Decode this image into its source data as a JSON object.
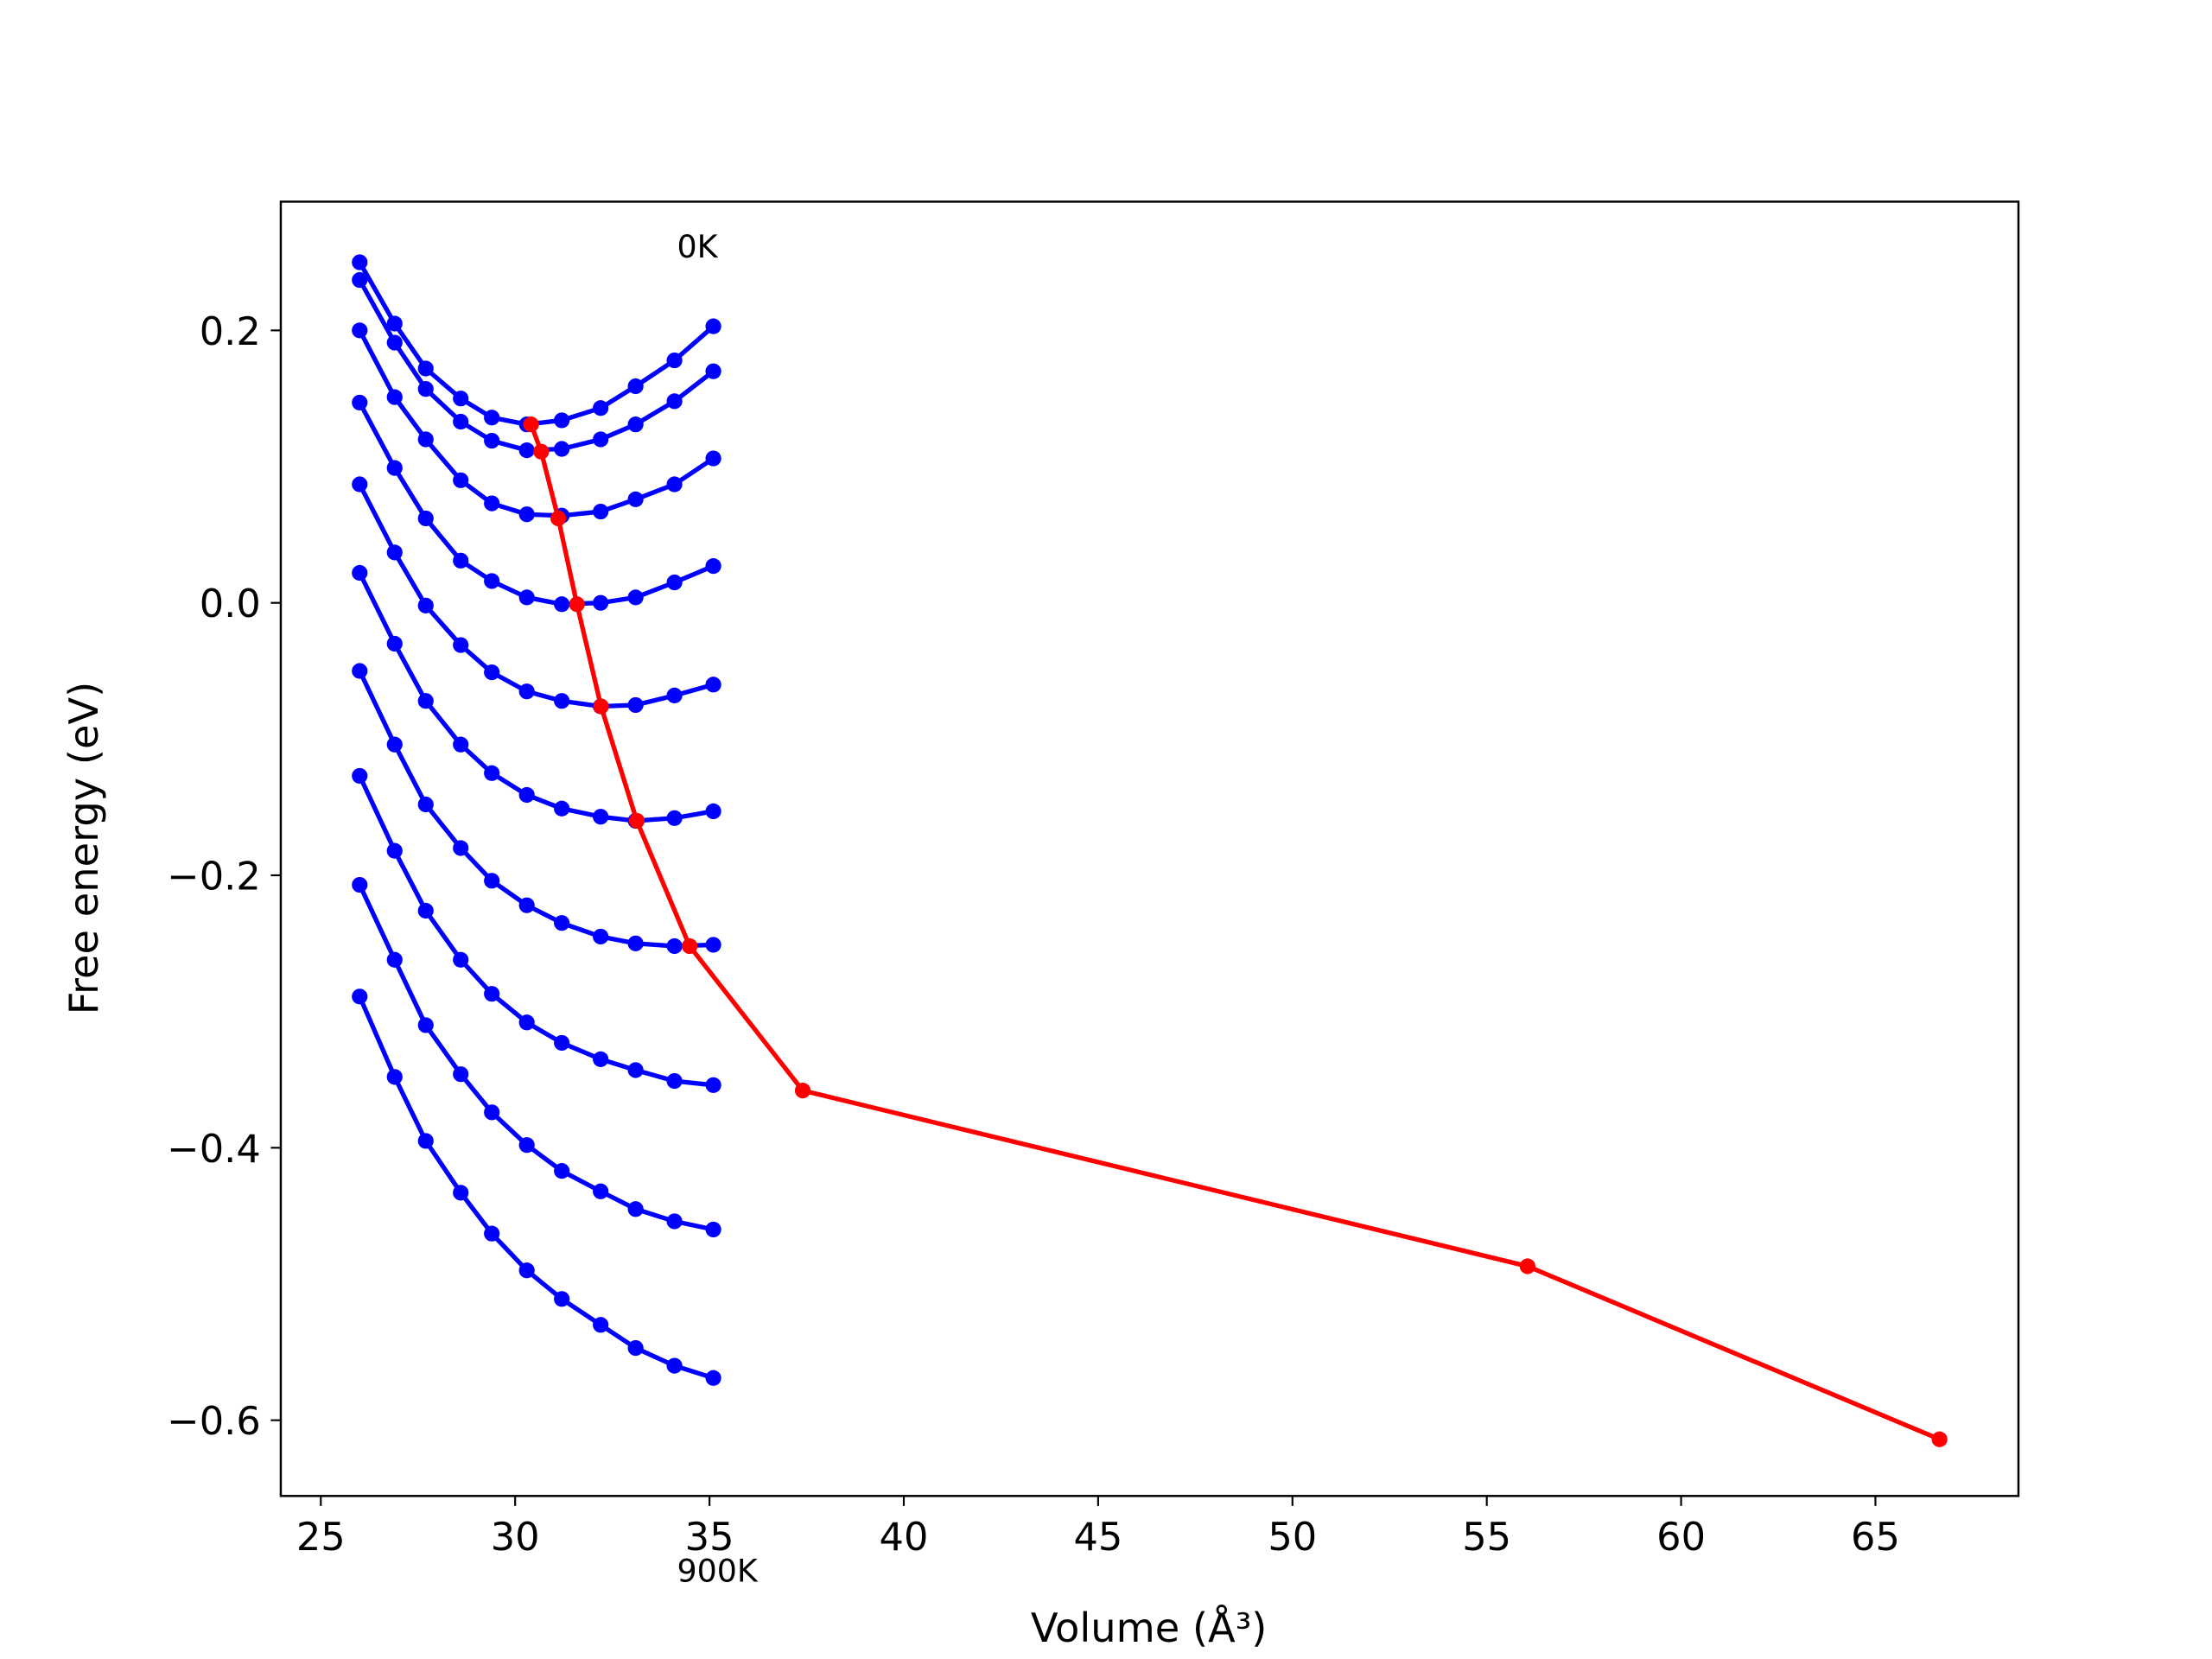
{
  "chart_data": {
    "type": "line",
    "xlabel": "Volume (Å³)",
    "ylabel": "Free energy (eV)",
    "annotations": [
      "0K",
      "900K"
    ],
    "xlim": [
      23.97,
      68.68
    ],
    "ylim": [
      -0.6556,
      0.2945
    ],
    "xticks": [
      25,
      30,
      35,
      40,
      45,
      50,
      55,
      60,
      65
    ],
    "yticks": [
      {
        "value": -0.6,
        "label": "−0.6"
      },
      {
        "value": -0.4,
        "label": "−0.4"
      },
      {
        "value": -0.2,
        "label": "−0.2"
      },
      {
        "value": 0.0,
        "label": "0.0"
      },
      0.2
    ],
    "series": [
      {
        "color": "#0000ff",
        "x": [
          26.0,
          26.9,
          27.7,
          28.6,
          29.4,
          30.3,
          31.2,
          32.2,
          33.1,
          34.1,
          35.1
        ],
        "values": [
          0.25,
          0.205,
          0.172,
          0.15,
          0.136,
          0.131,
          0.134,
          0.143,
          0.159,
          0.178,
          0.203
        ]
      },
      {
        "color": "#0000ff",
        "x": [
          26.0,
          26.9,
          27.7,
          28.6,
          29.4,
          30.3,
          31.2,
          32.2,
          33.1,
          34.1,
          35.1
        ],
        "values": [
          0.237,
          0.191,
          0.157,
          0.133,
          0.119,
          0.112,
          0.113,
          0.12,
          0.131,
          0.148,
          0.17
        ]
      },
      {
        "color": "#0000ff",
        "x": [
          26.0,
          26.9,
          27.7,
          28.6,
          29.4,
          30.3,
          31.2,
          32.2,
          33.1,
          34.1,
          35.1
        ],
        "values": [
          0.2,
          0.151,
          0.12,
          0.09,
          0.073,
          0.065,
          0.064,
          0.067,
          0.076,
          0.087,
          0.106
        ]
      },
      {
        "color": "#0000ff",
        "x": [
          26.0,
          26.9,
          27.7,
          28.6,
          29.4,
          30.3,
          31.2,
          32.2,
          33.1,
          34.1,
          35.1
        ],
        "values": [
          0.147,
          0.099,
          0.062,
          0.031,
          0.016,
          0.004,
          -0.001,
          0.0,
          0.004,
          0.015,
          0.027
        ]
      },
      {
        "color": "#0000ff",
        "x": [
          26.0,
          26.9,
          27.7,
          28.6,
          29.4,
          30.3,
          31.2,
          32.2,
          33.1,
          34.1,
          35.1
        ],
        "values": [
          0.087,
          0.037,
          -0.002,
          -0.031,
          -0.051,
          -0.065,
          -0.072,
          -0.076,
          -0.075,
          -0.068,
          -0.06
        ]
      },
      {
        "color": "#0000ff",
        "x": [
          26.0,
          26.9,
          27.7,
          28.6,
          29.4,
          30.3,
          31.2,
          32.2,
          33.1,
          34.1,
          35.1
        ],
        "values": [
          0.022,
          -0.03,
          -0.072,
          -0.104,
          -0.125,
          -0.141,
          -0.151,
          -0.157,
          -0.16,
          -0.158,
          -0.153
        ]
      },
      {
        "color": "#0000ff",
        "x": [
          26.0,
          26.9,
          27.7,
          28.6,
          29.4,
          30.3,
          31.2,
          32.2,
          33.1,
          34.1,
          35.1
        ],
        "values": [
          -0.05,
          -0.104,
          -0.148,
          -0.18,
          -0.204,
          -0.222,
          -0.235,
          -0.245,
          -0.25,
          -0.252,
          -0.251
        ]
      },
      {
        "color": "#0000ff",
        "x": [
          26.0,
          26.9,
          27.7,
          28.6,
          29.4,
          30.3,
          31.2,
          32.2,
          33.1,
          34.1,
          35.1
        ],
        "values": [
          -0.127,
          -0.182,
          -0.226,
          -0.262,
          -0.287,
          -0.308,
          -0.323,
          -0.335,
          -0.343,
          -0.351,
          -0.354
        ]
      },
      {
        "color": "#0000ff",
        "x": [
          26.0,
          26.9,
          27.7,
          28.6,
          29.4,
          30.3,
          31.2,
          32.2,
          33.1,
          34.1,
          35.1
        ],
        "values": [
          -0.207,
          -0.262,
          -0.31,
          -0.346,
          -0.374,
          -0.398,
          -0.417,
          -0.432,
          -0.445,
          -0.454,
          -0.46
        ]
      },
      {
        "color": "#0000ff",
        "x": [
          26.0,
          26.9,
          27.7,
          28.6,
          29.4,
          30.3,
          31.2,
          32.2,
          33.1,
          34.1,
          35.1
        ],
        "values": [
          -0.289,
          -0.348,
          -0.395,
          -0.433,
          -0.463,
          -0.49,
          -0.511,
          -0.53,
          -0.547,
          -0.56,
          -0.569
        ]
      },
      {
        "color": "#ff0000",
        "x": [
          30.41,
          30.67,
          31.11,
          31.59,
          32.21,
          33.13,
          34.49,
          37.4,
          56.05,
          66.65
        ],
        "values": [
          0.131,
          0.111,
          0.062,
          -0.001,
          -0.076,
          -0.16,
          -0.252,
          -0.358,
          -0.487,
          -0.614
        ]
      }
    ]
  }
}
